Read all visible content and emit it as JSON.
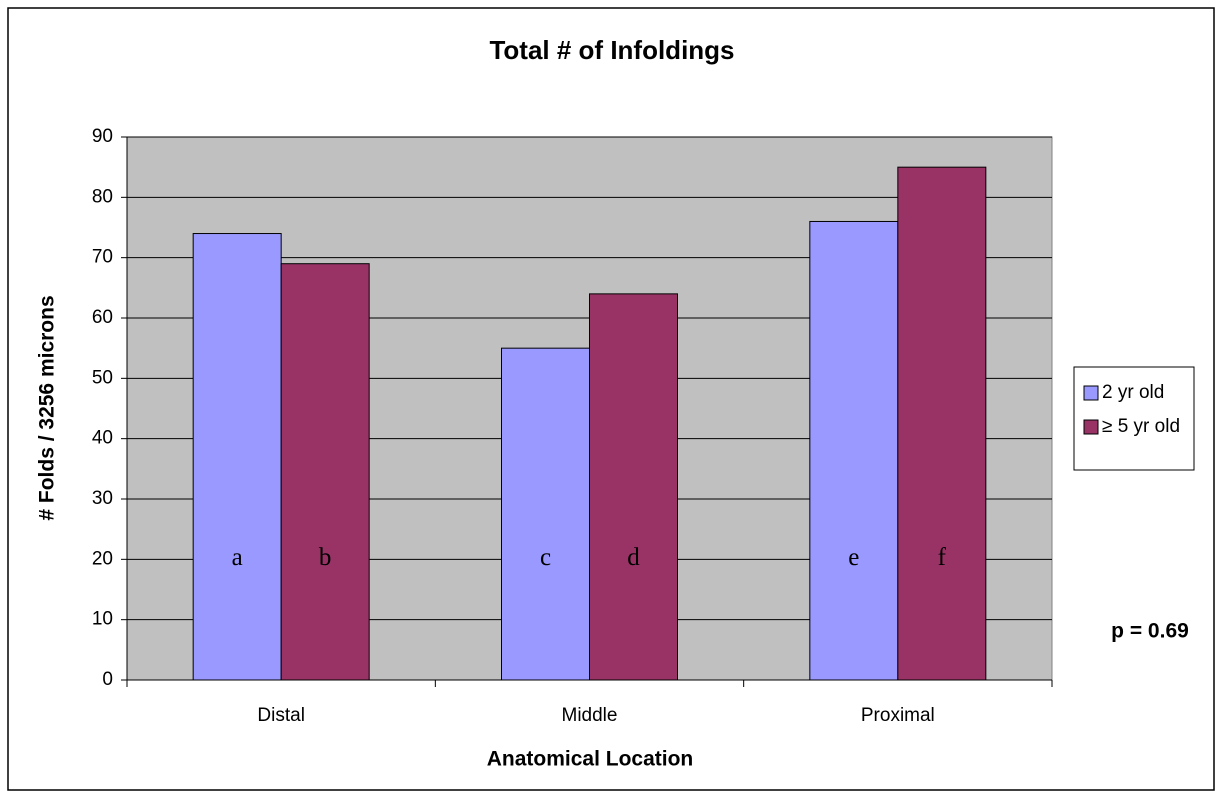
{
  "chart_data": {
    "type": "bar",
    "title": "Total # of Infoldings",
    "xlabel": "Anatomical Location",
    "ylabel": "# Folds / 3256 microns",
    "categories": [
      "Distal",
      "Middle",
      "Proximal"
    ],
    "series": [
      {
        "name": "2 yr old",
        "color": "#9999ff",
        "values": [
          74,
          55,
          76
        ],
        "bar_labels": [
          "a",
          "c",
          "e"
        ]
      },
      {
        "name": "≥ 5 yr old",
        "color": "#993366",
        "values": [
          69,
          64,
          85
        ],
        "bar_labels": [
          "b",
          "d",
          "f"
        ]
      }
    ],
    "ylim": [
      0,
      90
    ],
    "yticks": [
      0,
      10,
      20,
      30,
      40,
      50,
      60,
      70,
      80,
      90
    ],
    "grid": true,
    "legend": "right",
    "annotation": "p = 0.69"
  }
}
